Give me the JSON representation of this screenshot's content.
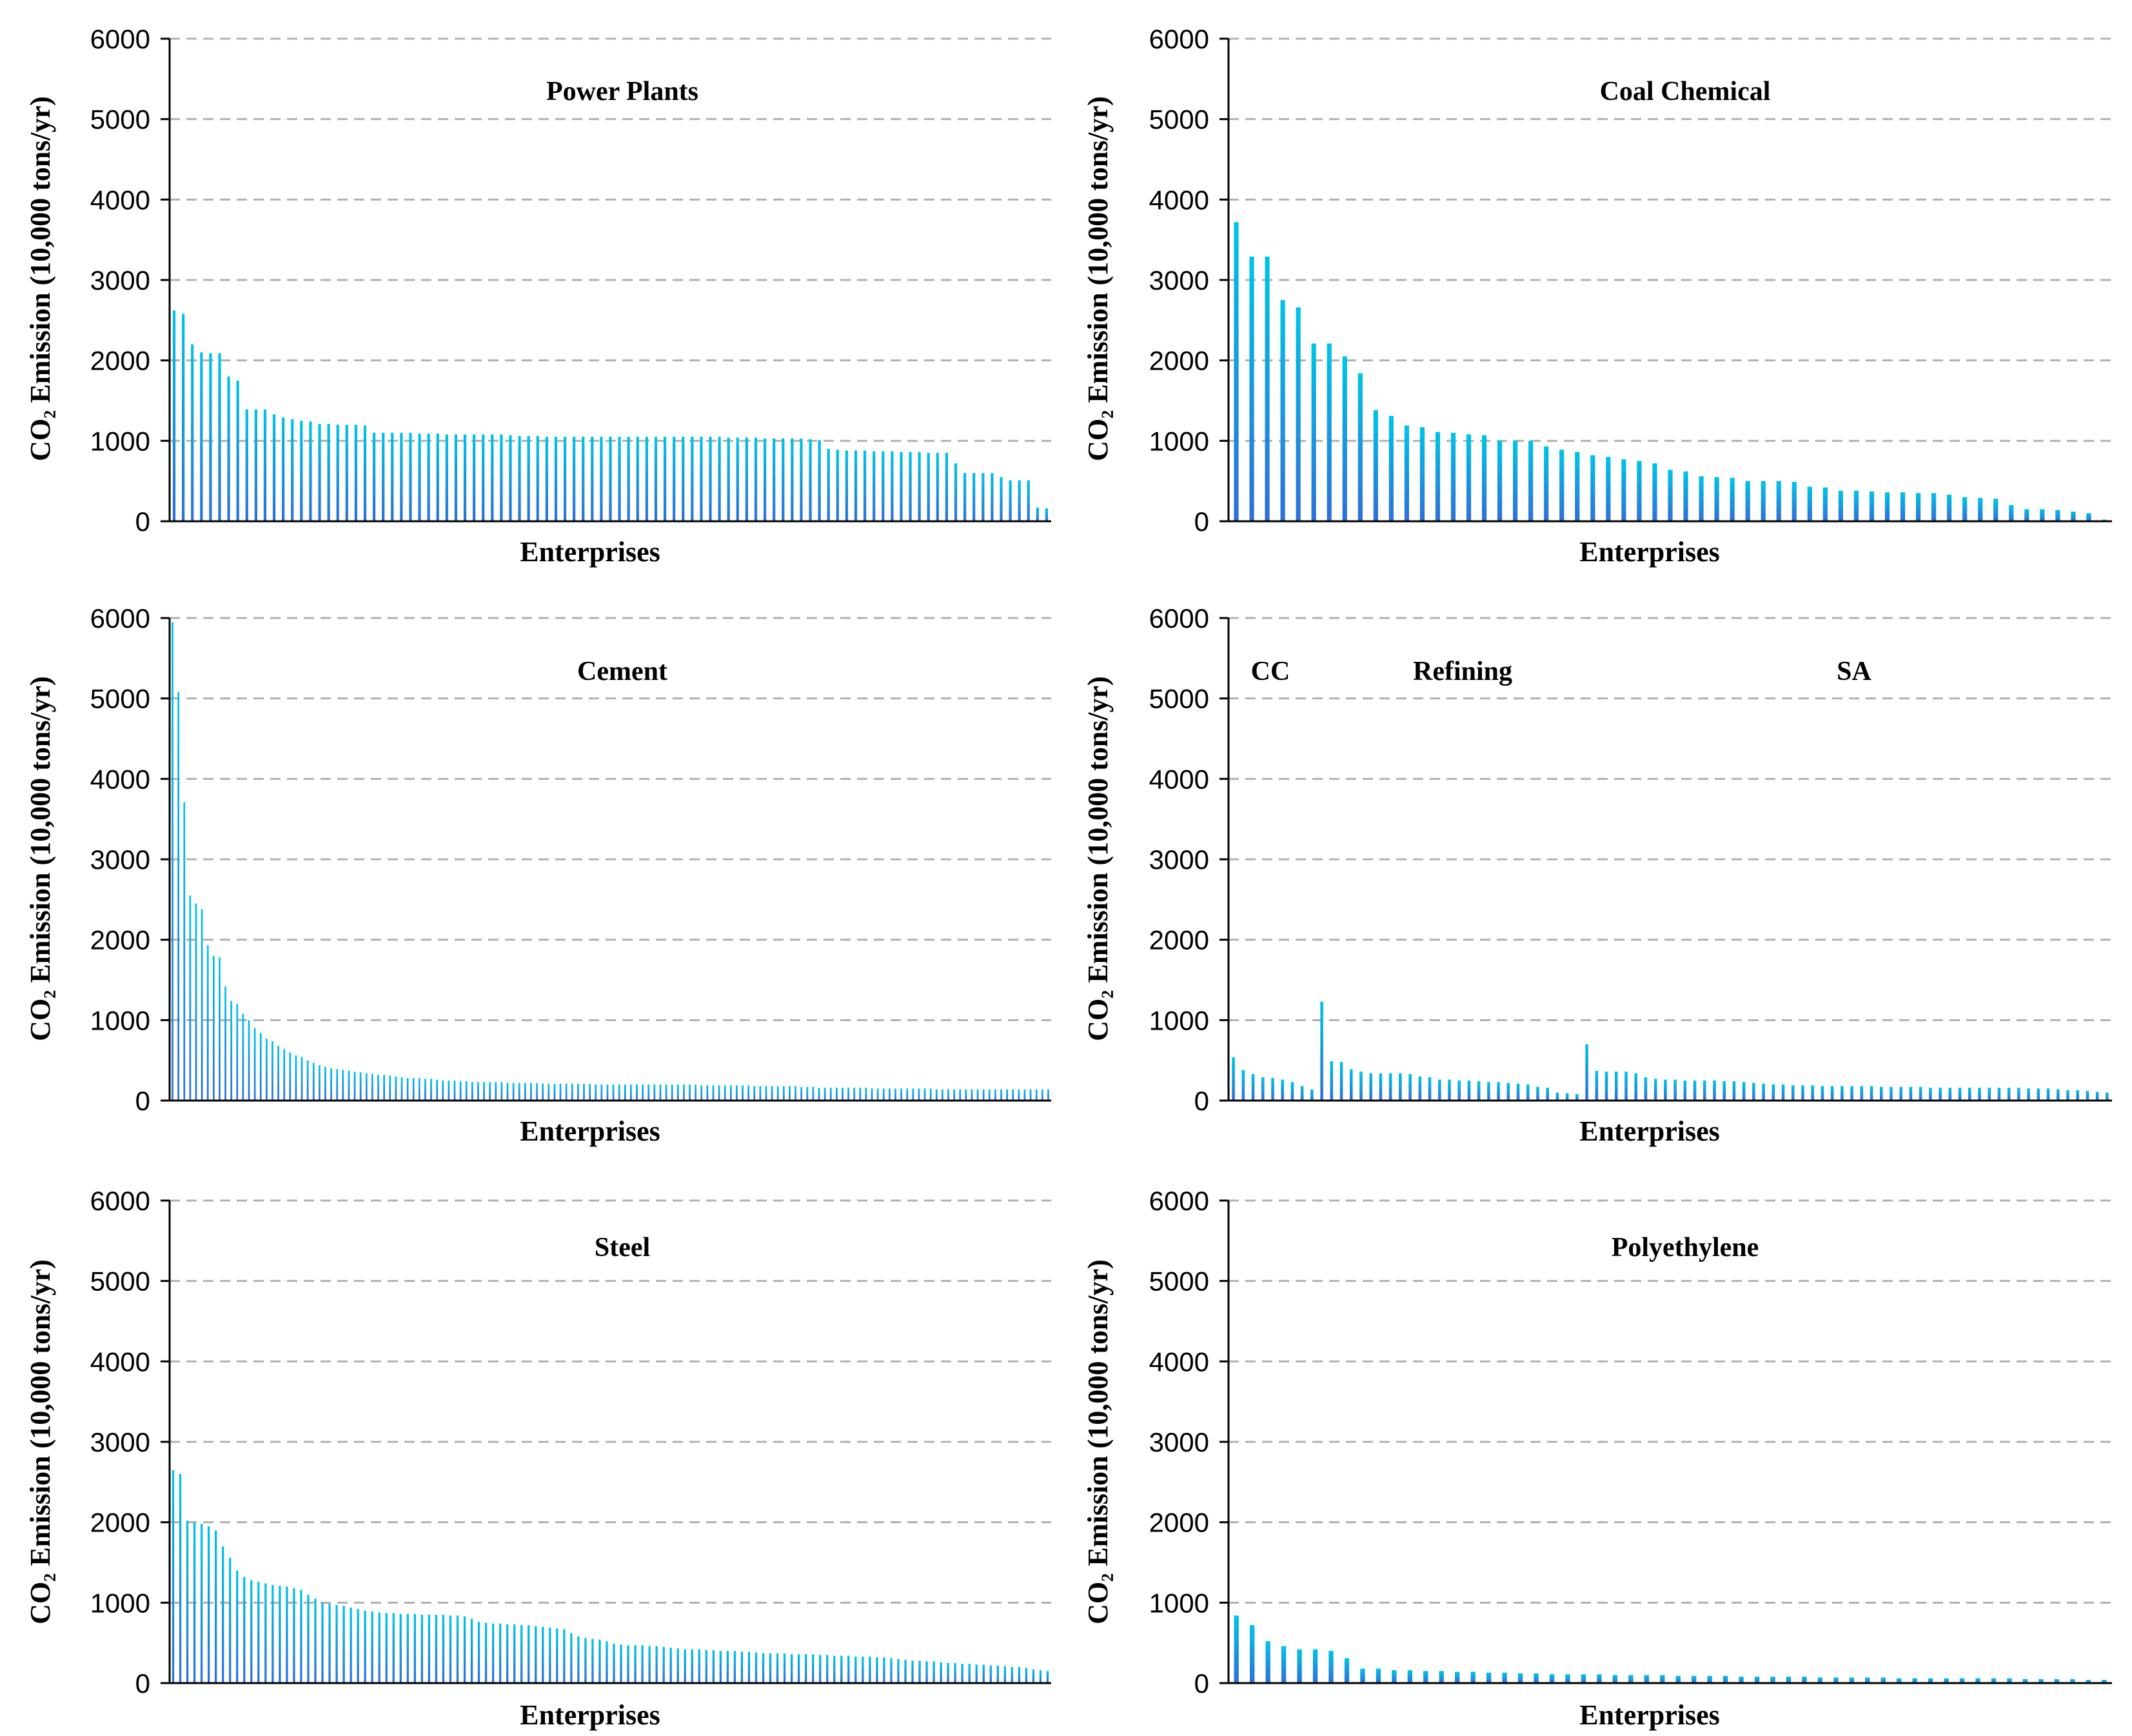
{
  "figure": {
    "gradient": {
      "top": "#00c4e6",
      "bottom": "#2f6fd8"
    },
    "grid_color": "#b0b0b0"
  },
  "chart_data": [
    {
      "type": "bar",
      "title": "Power Plants",
      "xlabel": "Enterprises",
      "ylabel": "CO₂ Emission (10,000 tons/yr)",
      "ylim": [
        0,
        6000
      ],
      "yticks": [
        0,
        1000,
        2000,
        3000,
        4000,
        5000,
        6000
      ],
      "grid": true,
      "values": [
        2620,
        2580,
        2200,
        2100,
        2090,
        2090,
        1800,
        1750,
        1390,
        1390,
        1390,
        1330,
        1290,
        1270,
        1250,
        1240,
        1210,
        1210,
        1200,
        1200,
        1200,
        1190,
        1100,
        1100,
        1100,
        1100,
        1100,
        1090,
        1090,
        1090,
        1080,
        1080,
        1080,
        1080,
        1080,
        1080,
        1080,
        1070,
        1060,
        1060,
        1060,
        1050,
        1050,
        1050,
        1050,
        1050,
        1050,
        1050,
        1050,
        1050,
        1050,
        1050,
        1050,
        1050,
        1050,
        1050,
        1050,
        1050,
        1050,
        1050,
        1050,
        1040,
        1040,
        1040,
        1040,
        1030,
        1030,
        1030,
        1030,
        1030,
        1020,
        1010,
        900,
        890,
        880,
        880,
        880,
        870,
        870,
        870,
        860,
        860,
        860,
        850,
        850,
        850,
        720,
        600,
        600,
        600,
        600,
        550,
        510,
        510,
        510,
        170,
        160
      ]
    },
    {
      "type": "bar",
      "title": "Coal Chemical",
      "xlabel": "Enterprises",
      "ylabel": "CO₂ Emission (10,000 tons/yr)",
      "ylim": [
        0,
        6000
      ],
      "yticks": [
        0,
        1000,
        2000,
        3000,
        4000,
        5000,
        6000
      ],
      "grid": true,
      "values": [
        3720,
        3290,
        3290,
        2750,
        2660,
        2210,
        2210,
        2050,
        1840,
        1380,
        1310,
        1190,
        1170,
        1110,
        1100,
        1080,
        1070,
        1000,
        1000,
        1000,
        930,
        890,
        860,
        820,
        800,
        770,
        750,
        720,
        640,
        620,
        560,
        550,
        540,
        500,
        500,
        500,
        490,
        430,
        420,
        380,
        380,
        370,
        360,
        360,
        350,
        350,
        330,
        300,
        290,
        280,
        200,
        150,
        150,
        140,
        120,
        100,
        20
      ]
    },
    {
      "type": "bar",
      "title": "Cement",
      "xlabel": "Enterprises",
      "ylabel": "CO₂ Emission (10,000 tons/yr)",
      "ylim": [
        0,
        6000
      ],
      "yticks": [
        0,
        1000,
        2000,
        3000,
        4000,
        5000,
        6000
      ],
      "grid": true,
      "values": [
        5950,
        5080,
        3710,
        2550,
        2450,
        2380,
        1930,
        1800,
        1780,
        1420,
        1240,
        1200,
        1080,
        1000,
        900,
        840,
        770,
        740,
        680,
        640,
        600,
        560,
        540,
        500,
        470,
        440,
        420,
        400,
        390,
        380,
        370,
        360,
        350,
        340,
        330,
        320,
        320,
        310,
        300,
        290,
        280,
        280,
        280,
        270,
        270,
        260,
        250,
        250,
        250,
        240,
        240,
        230,
        230,
        230,
        230,
        230,
        230,
        220,
        220,
        220,
        220,
        220,
        220,
        210,
        210,
        210,
        210,
        210,
        210,
        210,
        210,
        210,
        200,
        200,
        200,
        200,
        200,
        200,
        200,
        200,
        200,
        200,
        200,
        200,
        200,
        200,
        200,
        200,
        200,
        200,
        190,
        190,
        190,
        190,
        190,
        190,
        190,
        190,
        190,
        180,
        180,
        180,
        180,
        180,
        180,
        180,
        180,
        170,
        170,
        170,
        160,
        160,
        160,
        160,
        160,
        160,
        160,
        160,
        160,
        150,
        150,
        150,
        150,
        150,
        150,
        150,
        150,
        150,
        150,
        150,
        140,
        140,
        140,
        140,
        140,
        140,
        140,
        140,
        140,
        140,
        140,
        140,
        140,
        140,
        140,
        140,
        140,
        140,
        140,
        140
      ]
    },
    {
      "type": "bar",
      "title": "",
      "region_labels": [
        "CC",
        "Refining",
        "SA"
      ],
      "xlabel": "Enterprises",
      "ylabel": "CO₂ Emission (10,000 tons/yr)",
      "ylim": [
        0,
        6000
      ],
      "yticks": [
        0,
        1000,
        2000,
        3000,
        4000,
        5000,
        6000
      ],
      "grid": true,
      "values": [
        540,
        380,
        330,
        290,
        280,
        260,
        230,
        180,
        140,
        1230,
        490,
        480,
        390,
        360,
        340,
        340,
        340,
        340,
        330,
        300,
        290,
        260,
        260,
        250,
        250,
        240,
        230,
        230,
        220,
        210,
        200,
        170,
        160,
        100,
        90,
        80,
        700,
        370,
        360,
        360,
        360,
        340,
        290,
        270,
        260,
        260,
        250,
        250,
        250,
        250,
        240,
        240,
        230,
        220,
        210,
        200,
        200,
        190,
        190,
        190,
        180,
        180,
        180,
        180,
        180,
        180,
        170,
        170,
        170,
        170,
        170,
        160,
        160,
        160,
        160,
        160,
        160,
        160,
        160,
        160,
        160,
        150,
        150,
        150,
        140,
        130,
        130,
        120,
        110,
        100
      ]
    },
    {
      "type": "bar",
      "title": "Steel",
      "xlabel": "Enterprises",
      "ylabel": "CO₂ Emission (10,000 tons/yr)",
      "ylim": [
        0,
        6000
      ],
      "yticks": [
        0,
        1000,
        2000,
        3000,
        4000,
        5000,
        6000
      ],
      "grid": true,
      "values": [
        2650,
        2600,
        2020,
        2000,
        1980,
        1950,
        1900,
        1700,
        1560,
        1400,
        1320,
        1280,
        1260,
        1240,
        1220,
        1210,
        1200,
        1180,
        1160,
        1100,
        1050,
        1000,
        990,
        970,
        960,
        940,
        920,
        900,
        890,
        880,
        870,
        870,
        860,
        860,
        860,
        850,
        850,
        850,
        850,
        840,
        840,
        830,
        800,
        760,
        750,
        740,
        740,
        730,
        730,
        720,
        720,
        710,
        700,
        690,
        680,
        670,
        620,
        580,
        560,
        550,
        540,
        520,
        490,
        480,
        470,
        470,
        470,
        460,
        460,
        450,
        440,
        430,
        420,
        420,
        420,
        410,
        410,
        400,
        400,
        400,
        390,
        390,
        380,
        370,
        370,
        370,
        370,
        360,
        360,
        360,
        360,
        350,
        350,
        340,
        340,
        340,
        330,
        330,
        330,
        320,
        320,
        310,
        300,
        290,
        280,
        280,
        270,
        270,
        260,
        250,
        250,
        240,
        240,
        230,
        230,
        220,
        220,
        210,
        200,
        200,
        190,
        170,
        160,
        150
      ]
    },
    {
      "type": "bar",
      "title": "Polyethylene",
      "xlabel": "Enterprises",
      "ylabel": "CO₂ Emission (10,000 tons/yr)",
      "ylim": [
        0,
        6000
      ],
      "yticks": [
        0,
        1000,
        2000,
        3000,
        4000,
        5000,
        6000
      ],
      "grid": true,
      "values": [
        840,
        720,
        520,
        460,
        420,
        420,
        400,
        310,
        180,
        180,
        160,
        160,
        150,
        150,
        140,
        140,
        130,
        130,
        120,
        120,
        110,
        110,
        110,
        110,
        100,
        100,
        100,
        100,
        90,
        90,
        90,
        90,
        80,
        80,
        80,
        80,
        80,
        70,
        70,
        70,
        70,
        70,
        60,
        60,
        60,
        60,
        60,
        60,
        60,
        60,
        50,
        50,
        50,
        50,
        40,
        40
      ]
    }
  ]
}
